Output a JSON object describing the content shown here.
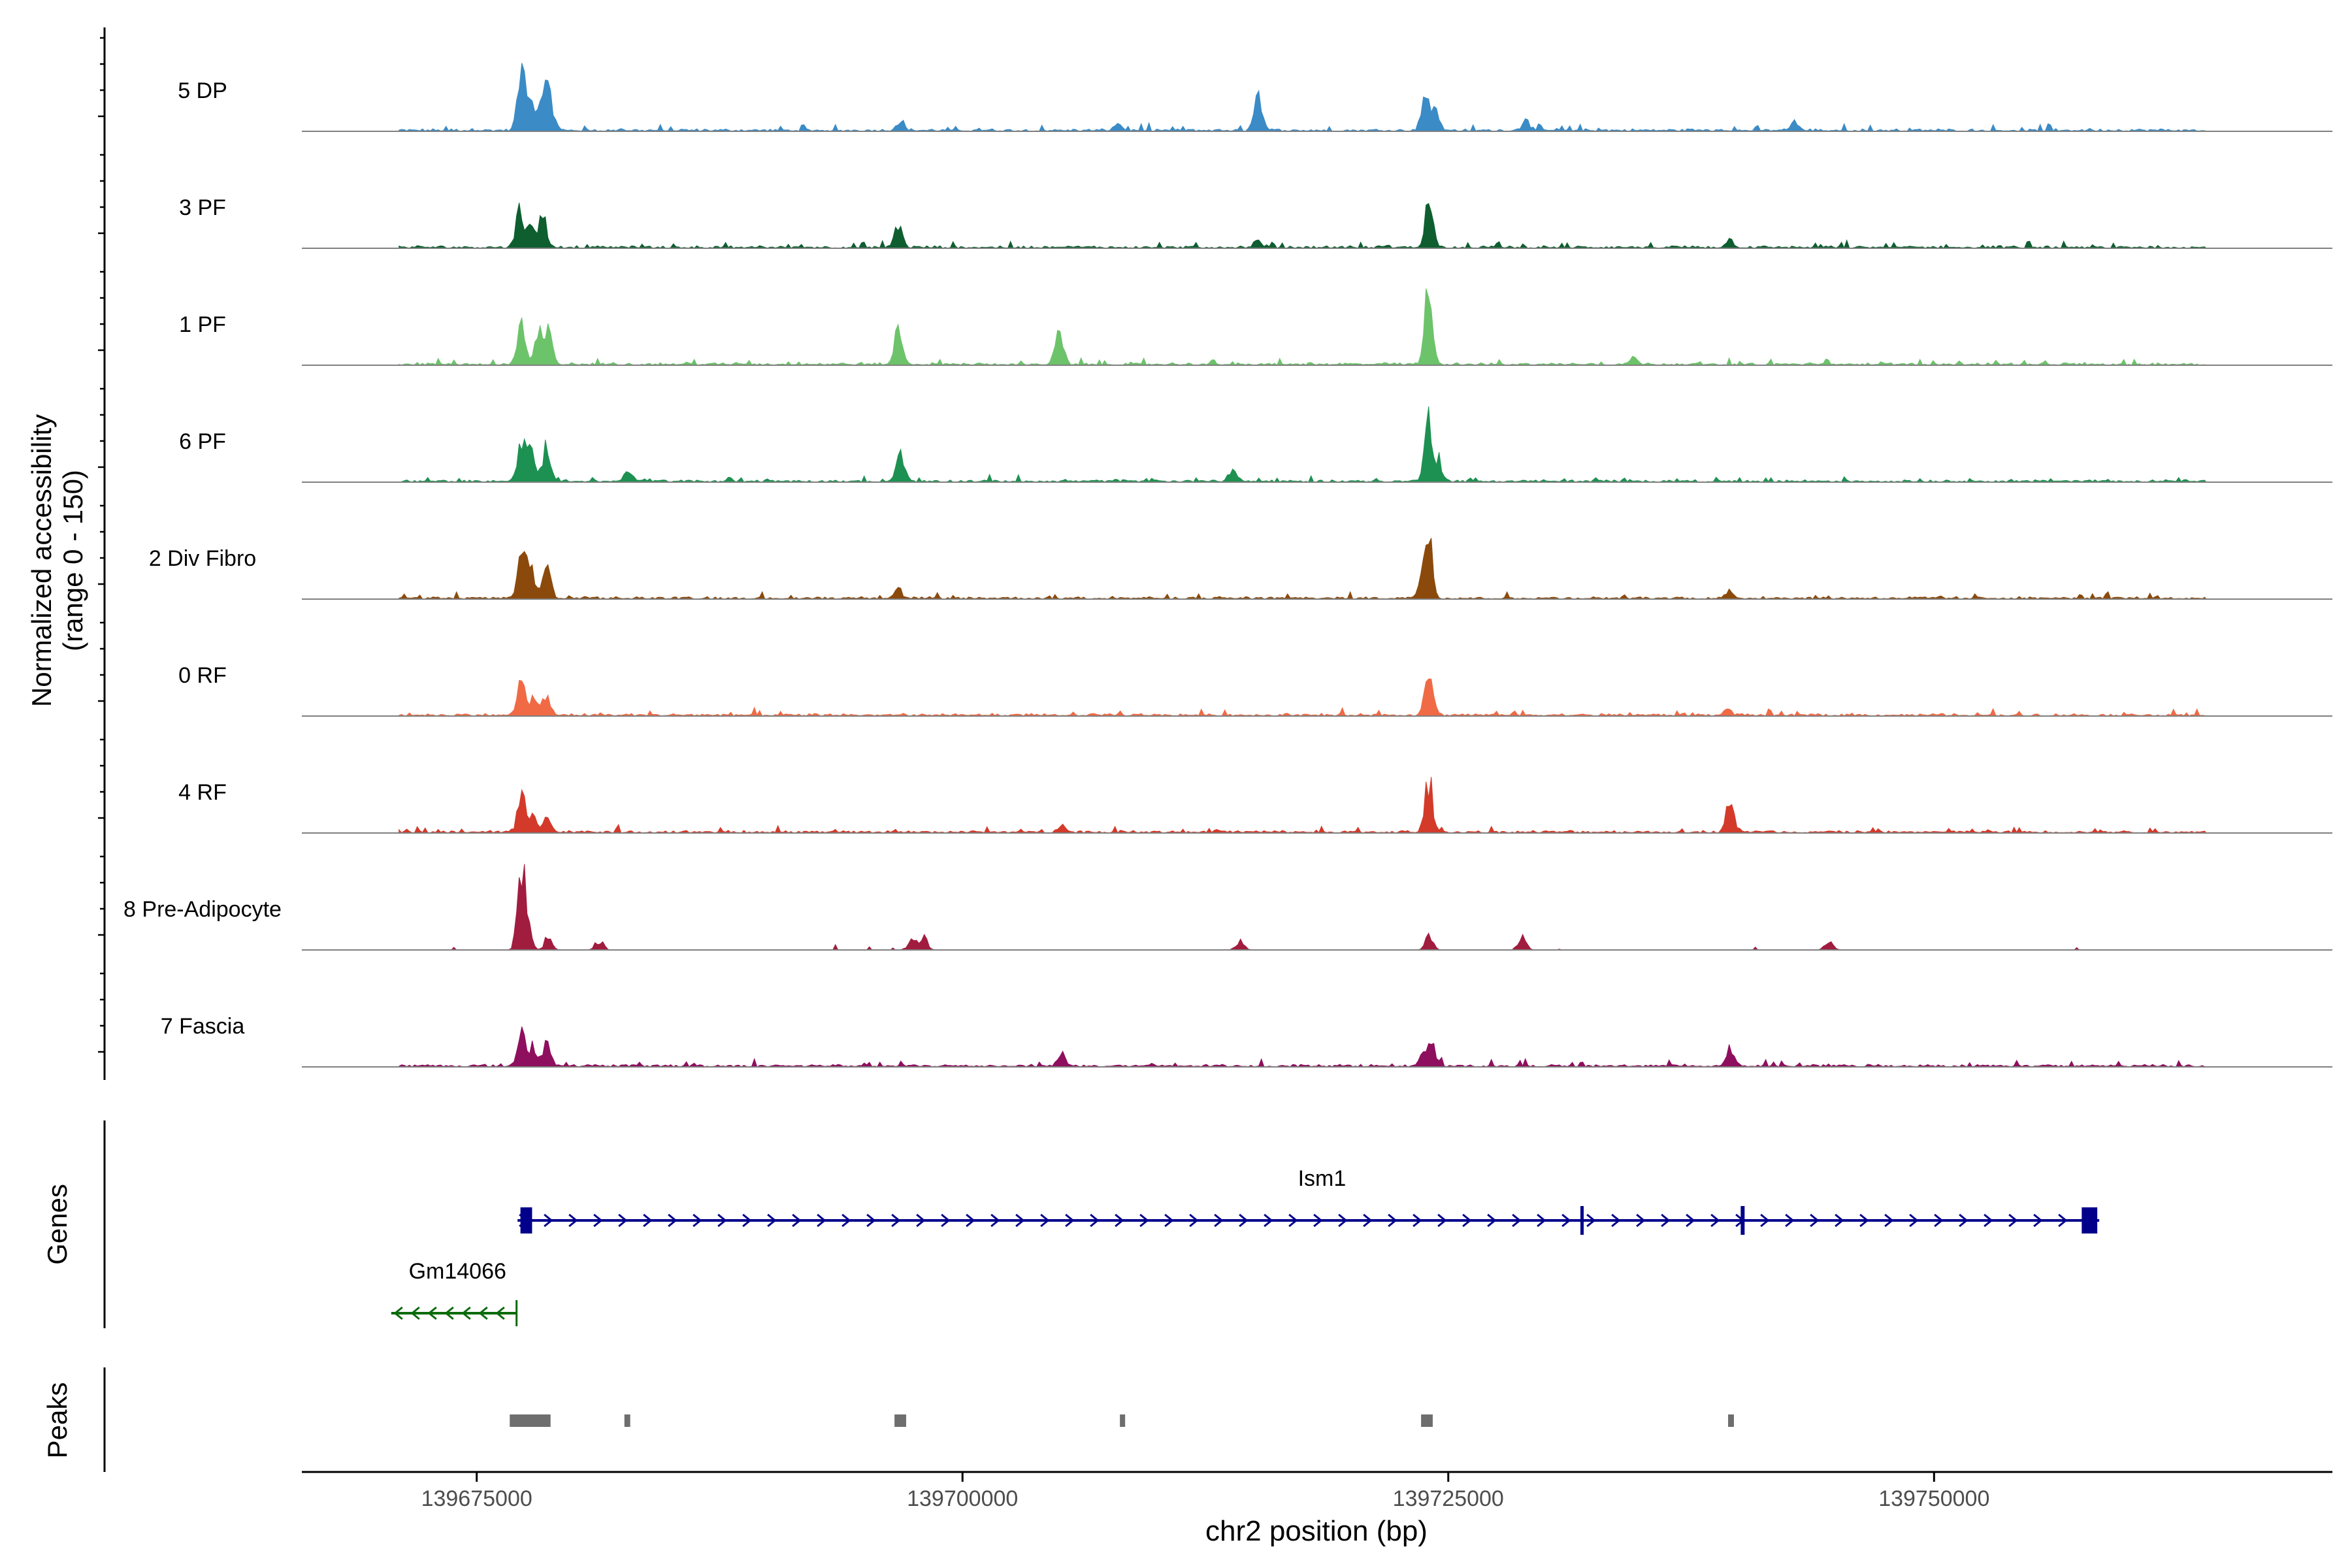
{
  "chart_data": {
    "type": "area",
    "title": "",
    "ylabel_line1": "Normalized accessibility",
    "ylabel_line2": "(range 0 - 150)",
    "ylim": [
      0,
      150
    ],
    "xlabel": "chr2 position (bp)",
    "xlim": [
      139666000,
      139770500
    ],
    "xticks": [
      139675000,
      139700000,
      139725000,
      139750000
    ],
    "tracks": [
      {
        "name": "5 DP",
        "color": "#3b8bc6",
        "peaks": [
          [
            139677300,
            98
          ],
          [
            139677700,
            55
          ],
          [
            139678400,
            66
          ],
          [
            139678800,
            48
          ],
          [
            139696800,
            18
          ],
          [
            139708000,
            12
          ],
          [
            139715200,
            62
          ],
          [
            139723800,
            58
          ],
          [
            139724300,
            40
          ],
          [
            139729000,
            18
          ],
          [
            139742800,
            14
          ]
        ]
      },
      {
        "name": "3 PF",
        "color": "#0e5e30",
        "peaks": [
          [
            139677200,
            60
          ],
          [
            139677800,
            48
          ],
          [
            139678400,
            55
          ],
          [
            139696700,
            40
          ],
          [
            139715200,
            10
          ],
          [
            139724000,
            80
          ],
          [
            139739500,
            12
          ]
        ]
      },
      {
        "name": "1 PF",
        "color": "#6cc36a",
        "peaks": [
          [
            139677300,
            78
          ],
          [
            139678200,
            50
          ],
          [
            139678700,
            52
          ],
          [
            139696700,
            60
          ],
          [
            139705000,
            55
          ],
          [
            139724000,
            145
          ],
          [
            139734500,
            12
          ]
        ]
      },
      {
        "name": "6 PF",
        "color": "#1d9151",
        "peaks": [
          [
            139677300,
            72
          ],
          [
            139677800,
            58
          ],
          [
            139678600,
            65
          ],
          [
            139682800,
            18
          ],
          [
            139696800,
            52
          ],
          [
            139713900,
            20
          ],
          [
            139724000,
            110
          ],
          [
            139724500,
            30
          ]
        ]
      },
      {
        "name": "2 Div Fibro",
        "color": "#8b4a0c",
        "peaks": [
          [
            139677300,
            72
          ],
          [
            139677800,
            48
          ],
          [
            139678600,
            62
          ],
          [
            139696700,
            14
          ],
          [
            139724000,
            100
          ],
          [
            139723600,
            30
          ],
          [
            139739500,
            10
          ]
        ]
      },
      {
        "name": "0 RF",
        "color": "#f06a45",
        "peaks": [
          [
            139677300,
            55
          ],
          [
            139677900,
            30
          ],
          [
            139678600,
            32
          ],
          [
            139724000,
            85
          ],
          [
            139739400,
            10
          ]
        ]
      },
      {
        "name": "4 RF",
        "color": "#d33a2a",
        "peaks": [
          [
            139677300,
            64
          ],
          [
            139677900,
            35
          ],
          [
            139678600,
            28
          ],
          [
            139705100,
            12
          ],
          [
            139724000,
            88
          ],
          [
            139739500,
            60
          ]
        ]
      },
      {
        "name": "8 Pre-Adipocyte",
        "color": "#a11d3f",
        "peaks": [
          [
            139677300,
            130
          ],
          [
            139677600,
            40
          ],
          [
            139678700,
            20
          ],
          [
            139681300,
            18
          ],
          [
            139697400,
            22
          ],
          [
            139698000,
            20
          ],
          [
            139714300,
            18
          ],
          [
            139724000,
            22
          ],
          [
            139728800,
            22
          ],
          [
            139744600,
            18
          ]
        ]
      },
      {
        "name": "7 Fascia",
        "color": "#8e0f5e",
        "peaks": [
          [
            139677300,
            60
          ],
          [
            139677900,
            35
          ],
          [
            139678600,
            42
          ],
          [
            139705100,
            22
          ],
          [
            139723700,
            22
          ],
          [
            139724200,
            30
          ],
          [
            139739500,
            32
          ]
        ]
      }
    ],
    "genes": [
      {
        "name": "Ism1",
        "strand": "+",
        "start": 139677100,
        "end": 139758500,
        "color": "#00008b",
        "exons": [
          [
            139677250,
            139677850
          ],
          [
            139731800,
            139731950
          ],
          [
            139740050,
            139740250
          ],
          [
            139757600,
            139758400
          ]
        ]
      },
      {
        "name": "Gm14066",
        "strand": "-",
        "start": 139670600,
        "end": 139677050,
        "color": "#0b6b0b",
        "exons": []
      }
    ],
    "peaks_track": [
      [
        139676700,
        139678800
      ],
      [
        139682600,
        139682900
      ],
      [
        139696500,
        139697100
      ],
      [
        139708100,
        139708300
      ],
      [
        139723600,
        139724200
      ],
      [
        139739400,
        139739700
      ]
    ],
    "panel_labels": {
      "genes": "Genes",
      "peaks": "Peaks"
    },
    "colors": {
      "baseline": "#808080",
      "peak_box": "#6e6e6e",
      "axis": "#000000",
      "tick_label": "#4d4d4d"
    }
  }
}
